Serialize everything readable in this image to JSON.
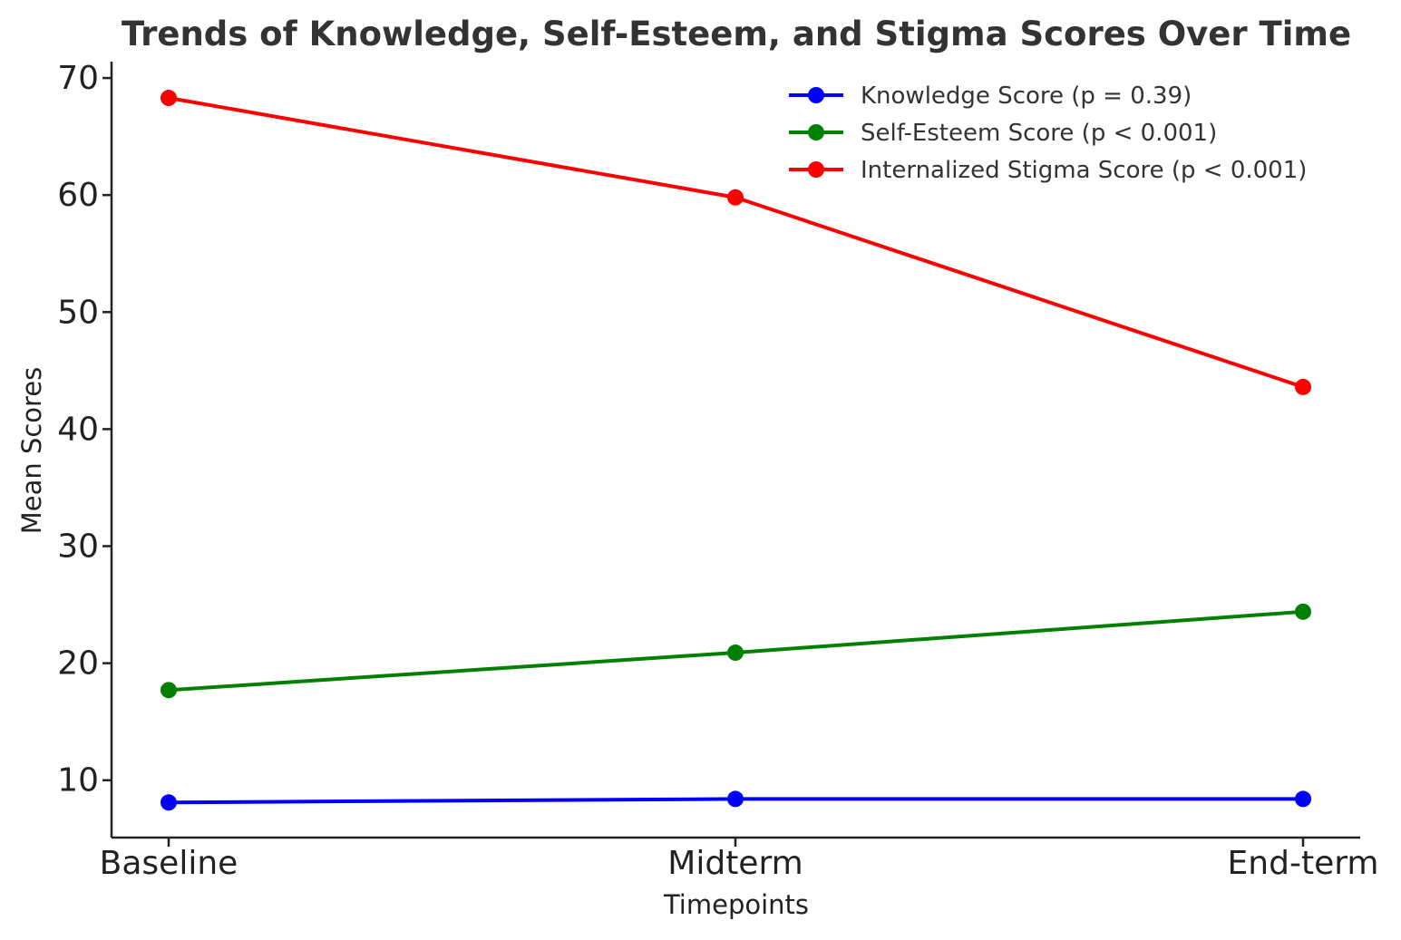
{
  "chart_data": {
    "type": "line",
    "title": "Trends of Knowledge, Self-Esteem, and Stigma Scores Over Time",
    "xlabel": "Timepoints",
    "ylabel": "Mean Scores",
    "categories": [
      "Baseline",
      "Midterm",
      "End-term"
    ],
    "ylim": [
      5.1,
      71.4
    ],
    "yticks": [
      10,
      20,
      30,
      40,
      50,
      60,
      70
    ],
    "grid": false,
    "legend_position": "top-right",
    "series": [
      {
        "name": "Knowledge Score (p = 0.39)",
        "color": "#0000ff",
        "marker": "circle",
        "values": [
          8.1,
          8.4,
          8.4
        ]
      },
      {
        "name": "Self-Esteem Score (p < 0.001)",
        "color": "#008000",
        "marker": "circle",
        "values": [
          17.7,
          20.9,
          24.4
        ]
      },
      {
        "name": "Internalized Stigma Score (p < 0.001)",
        "color": "#ff0000",
        "marker": "circle",
        "values": [
          68.3,
          59.8,
          43.6
        ]
      }
    ]
  }
}
